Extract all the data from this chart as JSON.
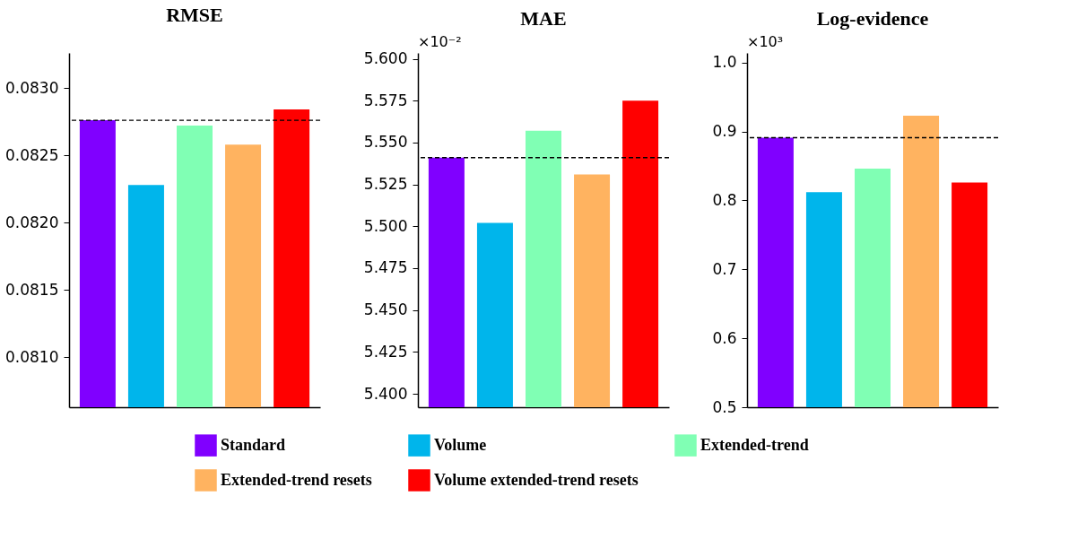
{
  "chart_data": [
    {
      "type": "bar",
      "title": "RMSE",
      "categories": [
        null
      ],
      "legend": "bottom",
      "series": [
        {
          "name": "Standard",
          "color": "#8000ff",
          "values": [
            0.08276
          ]
        },
        {
          "name": "Volume",
          "color": "#00b5eb",
          "values": [
            0.08228
          ]
        },
        {
          "name": "Extended-trend",
          "color": "#80ffb4",
          "values": [
            0.08272
          ]
        },
        {
          "name": "Extended-trend resets",
          "color": "#ffb360",
          "values": [
            0.08258
          ]
        },
        {
          "name": "Volume extended-trend resets",
          "color": "#ff0000",
          "values": [
            0.08284
          ]
        }
      ],
      "ylim": [
        0.08063,
        0.08326
      ],
      "yticks": [
        {
          "value": 0.081,
          "label": "0.0810"
        },
        {
          "value": 0.0815,
          "label": "0.0815"
        },
        {
          "value": 0.082,
          "label": "0.0820"
        },
        {
          "value": 0.0825,
          "label": "0.0825"
        },
        {
          "value": 0.083,
          "label": "0.0830"
        }
      ],
      "ref_lines": [
        {
          "axis": "y",
          "value": 0.08276,
          "line_style": "dashed",
          "color": "#000000"
        }
      ]
    },
    {
      "type": "bar",
      "title": "MAE",
      "categories": [
        null
      ],
      "legend": "bottom",
      "annotations": [
        "×10⁻²"
      ],
      "series": [
        {
          "name": "Standard",
          "color": "#8000ff",
          "values": [
            5.541
          ]
        },
        {
          "name": "Volume",
          "color": "#00b5eb",
          "values": [
            5.502
          ]
        },
        {
          "name": "Extended-trend",
          "color": "#80ffb4",
          "values": [
            5.557
          ]
        },
        {
          "name": "Extended-trend resets",
          "color": "#ffb360",
          "values": [
            5.531
          ]
        },
        {
          "name": "Volume extended-trend resets",
          "color": "#ff0000",
          "values": [
            5.575
          ]
        }
      ],
      "ylim": [
        5.392,
        5.6035
      ],
      "yticks": [
        {
          "value": 5.4,
          "label": "5.400"
        },
        {
          "value": 5.425,
          "label": "5.425"
        },
        {
          "value": 5.45,
          "label": "5.450"
        },
        {
          "value": 5.475,
          "label": "5.475"
        },
        {
          "value": 5.5,
          "label": "5.500"
        },
        {
          "value": 5.525,
          "label": "5.525"
        },
        {
          "value": 5.55,
          "label": "5.550"
        },
        {
          "value": 5.575,
          "label": "5.575"
        },
        {
          "value": 5.6,
          "label": "5.600"
        }
      ],
      "ref_lines": [
        {
          "axis": "y",
          "value": 5.541,
          "line_style": "dashed",
          "color": "#000000"
        }
      ]
    },
    {
      "type": "bar",
      "title": "Log-evidence",
      "categories": [
        null
      ],
      "legend": "bottom",
      "annotations": [
        "×10³"
      ],
      "series": [
        {
          "name": "Standard",
          "color": "#8000ff",
          "values": [
            0.891
          ]
        },
        {
          "name": "Volume",
          "color": "#00b5eb",
          "values": [
            0.812
          ]
        },
        {
          "name": "Extended-trend",
          "color": "#80ffb4",
          "values": [
            0.846
          ]
        },
        {
          "name": "Extended-trend resets",
          "color": "#ffb360",
          "values": [
            0.923
          ]
        },
        {
          "name": "Volume extended-trend resets",
          "color": "#ff0000",
          "values": [
            0.826
          ]
        }
      ],
      "ylim": [
        0.5,
        1.014
      ],
      "yticks": [
        {
          "value": 0.5,
          "label": "0.5"
        },
        {
          "value": 0.6,
          "label": "0.6"
        },
        {
          "value": 0.7,
          "label": "0.7"
        },
        {
          "value": 0.8,
          "label": "0.8"
        },
        {
          "value": 0.9,
          "label": "0.9"
        },
        {
          "value": 1.0,
          "label": "1.0"
        }
      ],
      "ref_lines": [
        {
          "axis": "y",
          "value": 0.891,
          "line_style": "dashed",
          "color": "#000000"
        }
      ]
    }
  ]
}
